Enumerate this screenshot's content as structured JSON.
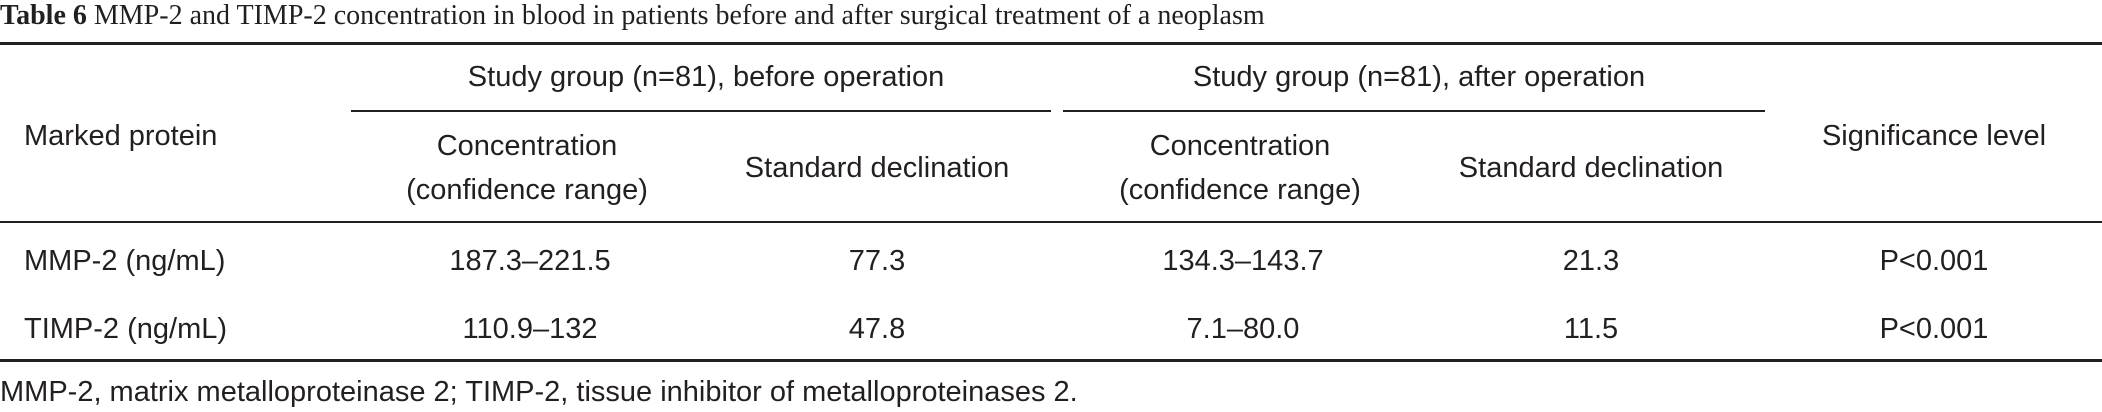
{
  "table": {
    "caption_label": "Table 6",
    "caption_text": " MMP-2 and TIMP-2 concentration in blood in patients before and after surgical treatment of a neoplasm",
    "group_before": "Study group (n=81), before operation",
    "group_after": "Study group (n=81), after operation",
    "col_marked_protein": "Marked protein",
    "col_concentration_line1": "Concentration",
    "col_concentration_line2": "(confidence range)",
    "col_std": "Standard declination",
    "col_significance": "Significance level",
    "rows": [
      {
        "protein": "MMP-2 (ng/mL)",
        "before_concentration": "187.3–221.5",
        "before_std": "77.3",
        "after_concentration": "134.3–143.7",
        "after_std": "21.3",
        "significance": "P<0.001"
      },
      {
        "protein": "TIMP-2 (ng/mL)",
        "before_concentration": "110.9–132",
        "before_std": "47.8",
        "after_concentration": "7.1–80.0",
        "after_std": "11.5",
        "significance": "P<0.001"
      }
    ],
    "footnote": "MMP-2, matrix metalloproteinase 2; TIMP-2, tissue inhibitor of metalloproteinases 2."
  }
}
